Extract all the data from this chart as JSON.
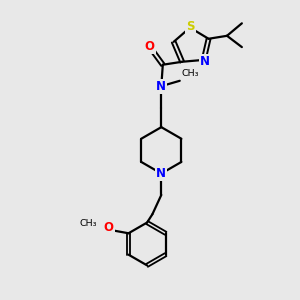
{
  "background_color": "#e8e8e8",
  "bond_color": "#000000",
  "atom_colors": {
    "N": "#0000ff",
    "O": "#ff0000",
    "S": "#cccc00",
    "C": "#000000"
  },
  "figsize": [
    3.0,
    3.0
  ],
  "dpi": 100,
  "xlim": [
    0,
    10
  ],
  "ylim": [
    0,
    10
  ]
}
